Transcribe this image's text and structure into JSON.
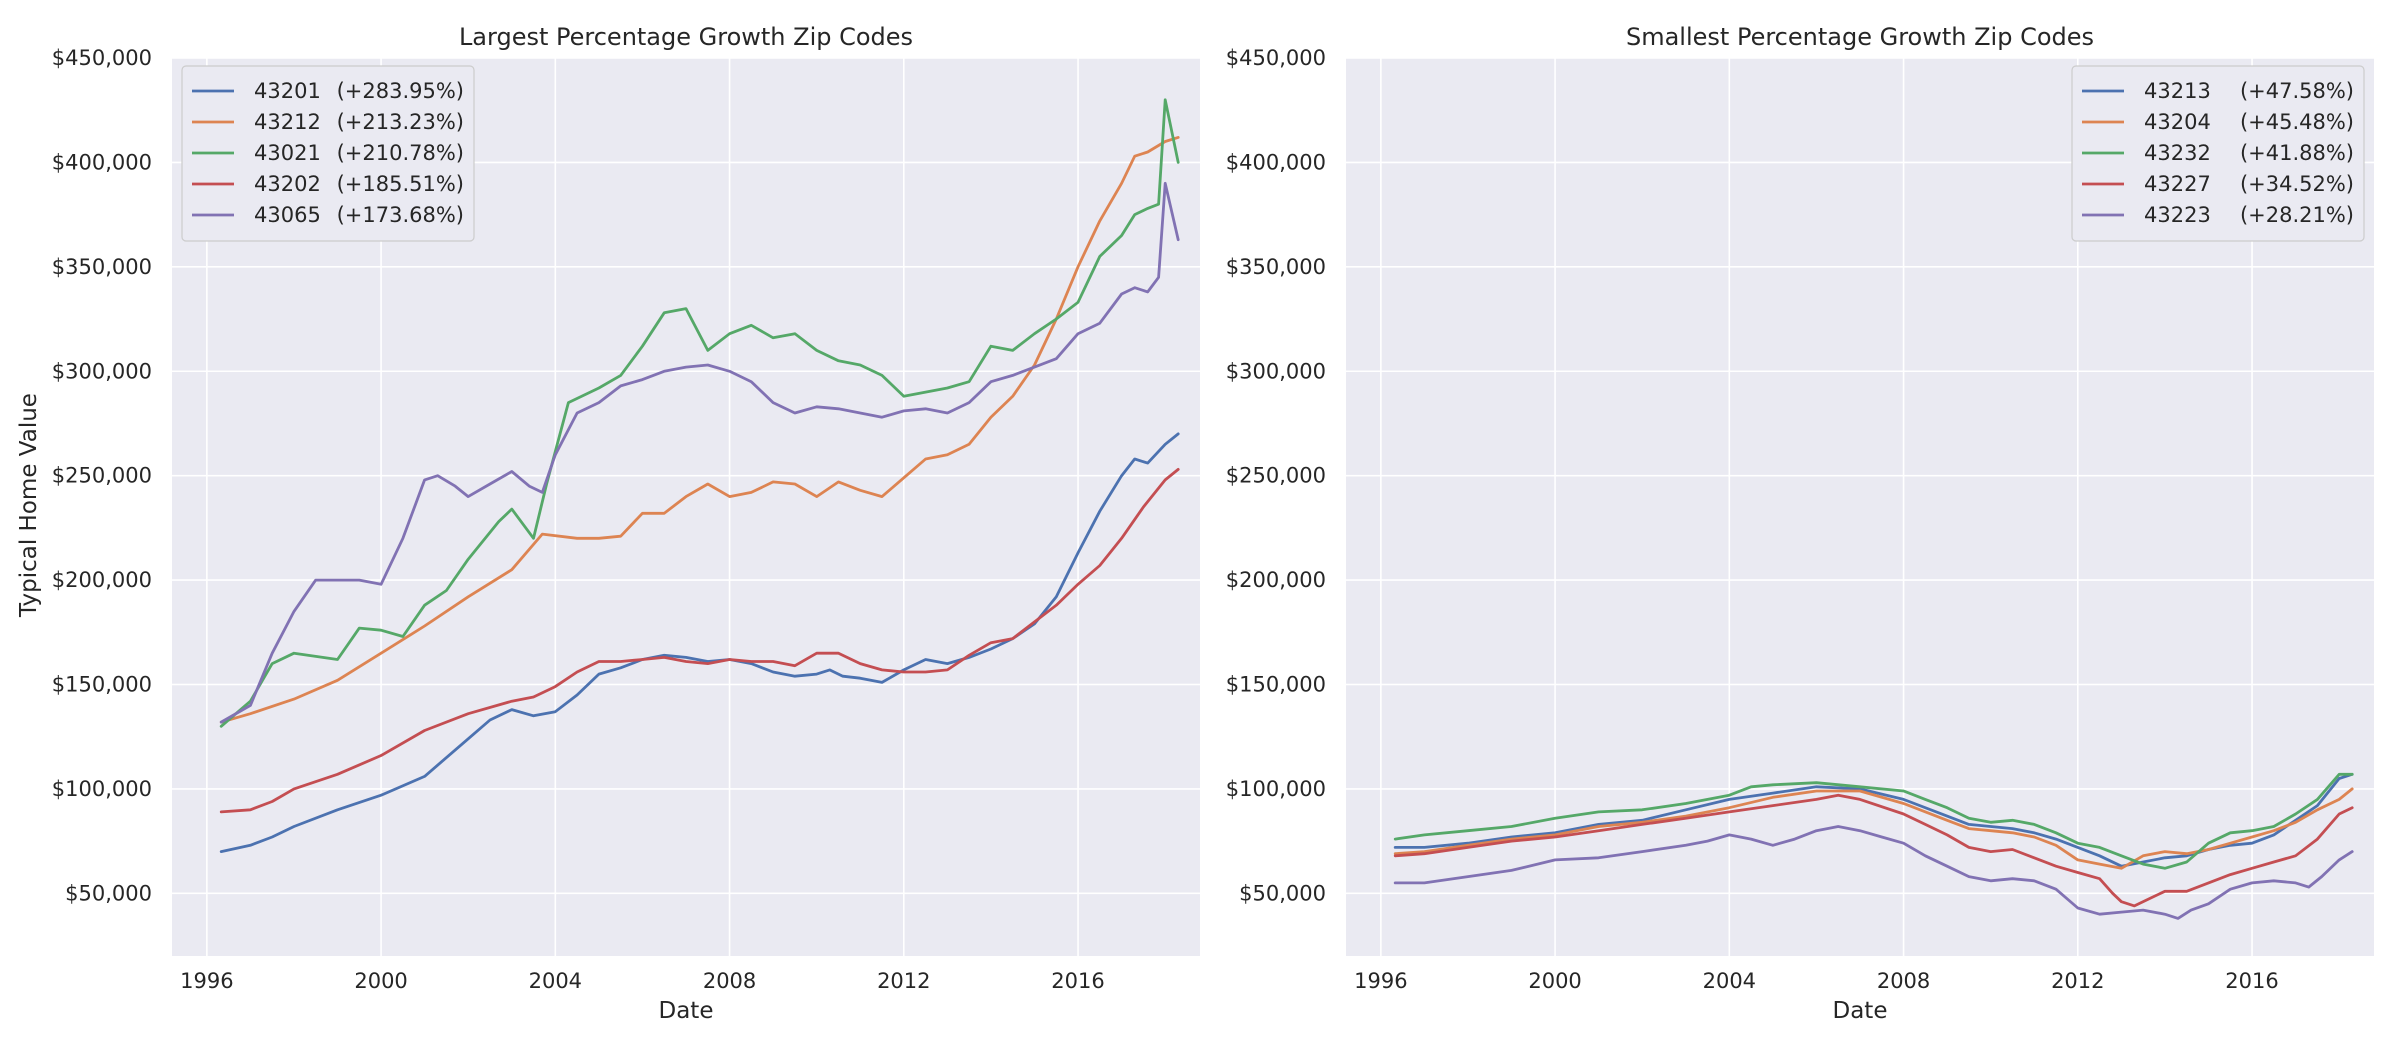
{
  "figure": {
    "ylabel": "Typical Home Value"
  },
  "colors": {
    "background": "#eaeaf2",
    "grid": "#ffffff",
    "series": [
      "#4c72b0",
      "#dd8452",
      "#55a868",
      "#c44e52",
      "#8172b3"
    ]
  },
  "chart_data": [
    {
      "type": "line",
      "title": "Largest Percentage Growth Zip Codes",
      "xlabel": "Date",
      "ylabel": "Typical Home Value",
      "x_ticks": [
        1996,
        2000,
        2004,
        2008,
        2012,
        2016
      ],
      "y_ticks": [
        "$50,000",
        "$100,000",
        "$150,000",
        "$200,000",
        "$250,000",
        "$300,000",
        "$350,000",
        "$400,000",
        "$450,000"
      ],
      "y_tick_values": [
        50000,
        100000,
        150000,
        200000,
        250000,
        300000,
        350000,
        400000,
        450000
      ],
      "xlim": [
        1995.2,
        2018.8
      ],
      "ylim": [
        20000,
        450000
      ],
      "grid": true,
      "legend_position": "upper-left",
      "series": [
        {
          "name": "43201",
          "growth": "(+283.95%)",
          "x": [
            1996.33,
            1997,
            1997.5,
            1998,
            1999,
            2000,
            2001,
            2002,
            2002.5,
            2003,
            2003.5,
            2004,
            2004.5,
            2005,
            2005.5,
            2006,
            2006.5,
            2007,
            2007.5,
            2008,
            2008.5,
            2009,
            2009.5,
            2010,
            2010.3,
            2010.6,
            2011,
            2011.5,
            2012,
            2012.5,
            2013,
            2013.5,
            2014,
            2014.5,
            2015,
            2015.5,
            2016,
            2016.5,
            2017,
            2017.3,
            2017.6,
            2018,
            2018.3
          ],
          "y": [
            70000,
            73000,
            77000,
            82000,
            90000,
            97000,
            106000,
            124000,
            133000,
            138000,
            135000,
            137000,
            145000,
            155000,
            158000,
            162000,
            164000,
            163000,
            161000,
            162000,
            160000,
            156000,
            154000,
            155000,
            157000,
            154000,
            153000,
            151000,
            157000,
            162000,
            160000,
            163000,
            167000,
            172000,
            179000,
            192000,
            213000,
            233000,
            250000,
            258000,
            256000,
            265000,
            270000
          ]
        },
        {
          "name": "43212",
          "growth": "(+213.23%)",
          "x": [
            1996.33,
            1997,
            1998,
            1999,
            2000,
            2001,
            2002,
            2003,
            2003.7,
            2004.5,
            2005,
            2005.5,
            2006,
            2006.5,
            2007,
            2007.5,
            2008,
            2008.5,
            2009,
            2009.5,
            2010,
            2010.5,
            2011,
            2011.5,
            2012,
            2012.5,
            2013,
            2013.5,
            2014,
            2014.5,
            2015,
            2015.5,
            2016,
            2016.5,
            2017,
            2017.3,
            2017.6,
            2018,
            2018.3
          ],
          "y": [
            132000,
            136000,
            143000,
            152000,
            165000,
            178000,
            192000,
            205000,
            222000,
            220000,
            220000,
            221000,
            232000,
            232000,
            240000,
            246000,
            240000,
            242000,
            247000,
            246000,
            240000,
            247000,
            243000,
            240000,
            249000,
            258000,
            260000,
            265000,
            278000,
            288000,
            303000,
            325000,
            350000,
            372000,
            390000,
            403000,
            405000,
            410000,
            412000
          ]
        },
        {
          "name": "43021",
          "growth": "(+210.78%)",
          "x": [
            1996.33,
            1997,
            1997.5,
            1998,
            1999,
            1999.5,
            2000,
            2000.5,
            2001,
            2001.5,
            2002,
            2002.7,
            2003,
            2003.5,
            2003.8,
            2004.3,
            2005,
            2005.5,
            2006,
            2006.5,
            2007,
            2007.5,
            2008,
            2008.5,
            2009,
            2009.5,
            2010,
            2010.5,
            2011,
            2011.5,
            2012,
            2012.5,
            2013,
            2013.5,
            2014,
            2014.5,
            2015,
            2015.5,
            2016,
            2016.5,
            2017,
            2017.3,
            2017.6,
            2017.85,
            2018,
            2018.3
          ],
          "y": [
            130000,
            142000,
            160000,
            165000,
            162000,
            177000,
            176000,
            173000,
            188000,
            195000,
            210000,
            228000,
            234000,
            220000,
            246000,
            285000,
            292000,
            298000,
            312000,
            328000,
            330000,
            310000,
            318000,
            322000,
            316000,
            318000,
            310000,
            305000,
            303000,
            298000,
            288000,
            290000,
            292000,
            295000,
            312000,
            310000,
            318000,
            325000,
            333000,
            355000,
            365000,
            375000,
            378000,
            380000,
            430000,
            400000
          ]
        },
        {
          "name": "43202",
          "growth": "(+185.51%)",
          "x": [
            1996.33,
            1997,
            1997.5,
            1998,
            1999,
            2000,
            2001,
            2002,
            2003,
            2003.5,
            2004,
            2004.5,
            2005,
            2005.5,
            2006,
            2006.5,
            2007,
            2007.5,
            2008,
            2008.5,
            2009,
            2009.5,
            2010,
            2010.5,
            2011,
            2011.5,
            2012,
            2012.5,
            2013,
            2013.5,
            2014,
            2014.5,
            2015,
            2015.5,
            2016,
            2016.5,
            2017,
            2017.5,
            2018,
            2018.3
          ],
          "y": [
            89000,
            90000,
            94000,
            100000,
            107000,
            116000,
            128000,
            136000,
            142000,
            144000,
            149000,
            156000,
            161000,
            161000,
            162000,
            163000,
            161000,
            160000,
            162000,
            161000,
            161000,
            159000,
            165000,
            165000,
            160000,
            157000,
            156000,
            156000,
            157000,
            164000,
            170000,
            172000,
            180000,
            188000,
            198000,
            207000,
            220000,
            235000,
            248000,
            253000
          ]
        },
        {
          "name": "43065",
          "growth": "(+173.68%)",
          "x": [
            1996.33,
            1997,
            1997.5,
            1998,
            1998.5,
            1999,
            1999.5,
            2000,
            2000.5,
            2001,
            2001.3,
            2001.7,
            2002,
            2002.5,
            2003,
            2003.4,
            2003.7,
            2004,
            2004.5,
            2005,
            2005.5,
            2006,
            2006.5,
            2007,
            2007.5,
            2008,
            2008.5,
            2009,
            2009.5,
            2010,
            2010.5,
            2011,
            2011.5,
            2012,
            2012.5,
            2013,
            2013.5,
            2014,
            2014.5,
            2015,
            2015.5,
            2016,
            2016.5,
            2017,
            2017.3,
            2017.6,
            2017.85,
            2018,
            2018.3
          ],
          "y": [
            132000,
            140000,
            165000,
            185000,
            200000,
            200000,
            200000,
            198000,
            220000,
            248000,
            250000,
            245000,
            240000,
            246000,
            252000,
            245000,
            242000,
            260000,
            280000,
            285000,
            293000,
            296000,
            300000,
            302000,
            303000,
            300000,
            295000,
            285000,
            280000,
            283000,
            282000,
            280000,
            278000,
            281000,
            282000,
            280000,
            285000,
            295000,
            298000,
            302000,
            306000,
            318000,
            323000,
            337000,
            340000,
            338000,
            345000,
            390000,
            363000
          ]
        }
      ]
    },
    {
      "type": "line",
      "title": "Smallest Percentage Growth Zip Codes",
      "xlabel": "Date",
      "ylabel": "",
      "x_ticks": [
        1996,
        2000,
        2004,
        2008,
        2012,
        2016
      ],
      "y_ticks": [
        "$50,000",
        "$100,000",
        "$150,000",
        "$200,000",
        "$250,000",
        "$300,000",
        "$350,000",
        "$400,000",
        "$450,000"
      ],
      "y_tick_values": [
        50000,
        100000,
        150000,
        200000,
        250000,
        300000,
        350000,
        400000,
        450000
      ],
      "xlim": [
        1995.2,
        2018.8
      ],
      "ylim": [
        20000,
        450000
      ],
      "grid": true,
      "legend_position": "upper-right",
      "series": [
        {
          "name": "43213",
          "growth": "(+47.58%)",
          "x": [
            1996.33,
            1997,
            1998,
            1999,
            2000,
            2001,
            2002,
            2003,
            2004,
            2005,
            2006,
            2007,
            2008,
            2009,
            2009.5,
            2010,
            2010.5,
            2011,
            2011.5,
            2012,
            2012.5,
            2013,
            2013.5,
            2014,
            2014.5,
            2015,
            2015.5,
            2016,
            2016.5,
            2017,
            2017.5,
            2018,
            2018.3
          ],
          "y": [
            72000,
            72000,
            74000,
            77000,
            79000,
            83000,
            85000,
            90000,
            95000,
            98000,
            101000,
            100000,
            95000,
            87000,
            83000,
            82000,
            81000,
            79000,
            76000,
            72000,
            68000,
            63000,
            65000,
            67000,
            68000,
            71000,
            73000,
            74000,
            78000,
            85000,
            92000,
            105000,
            107000
          ]
        },
        {
          "name": "43204",
          "growth": "(+45.48%)",
          "x": [
            1996.33,
            1997,
            1998,
            1999,
            2000,
            2001,
            2002,
            2003,
            2004,
            2005,
            2006,
            2007,
            2008,
            2009,
            2009.5,
            2010,
            2010.5,
            2011,
            2011.5,
            2012,
            2012.5,
            2013,
            2013.5,
            2014,
            2014.5,
            2015,
            2015.5,
            2016,
            2016.5,
            2017,
            2017.5,
            2018,
            2018.3
          ],
          "y": [
            69000,
            70000,
            73000,
            76000,
            78000,
            82000,
            84000,
            87000,
            91000,
            96000,
            99000,
            99000,
            93000,
            85000,
            81000,
            80000,
            79000,
            77000,
            73000,
            66000,
            64000,
            62000,
            68000,
            70000,
            69000,
            71000,
            74000,
            77000,
            80000,
            84000,
            90000,
            95000,
            100000
          ]
        },
        {
          "name": "43232",
          "growth": "(+41.88%)",
          "x": [
            1996.33,
            1997,
            1998,
            1999,
            2000,
            2001,
            2002,
            2003,
            2004,
            2004.5,
            2005,
            2006,
            2007,
            2008,
            2008.5,
            2009,
            2009.5,
            2010,
            2010.5,
            2011,
            2011.5,
            2012,
            2012.5,
            2013,
            2013.5,
            2014,
            2014.5,
            2015,
            2015.5,
            2016,
            2016.5,
            2017,
            2017.5,
            2018,
            2018.3
          ],
          "y": [
            76000,
            78000,
            80000,
            82000,
            86000,
            89000,
            90000,
            93000,
            97000,
            101000,
            102000,
            103000,
            101000,
            99000,
            95000,
            91000,
            86000,
            84000,
            85000,
            83000,
            79000,
            74000,
            72000,
            68000,
            64000,
            62000,
            65000,
            74000,
            79000,
            80000,
            82000,
            88000,
            95000,
            107000,
            107000
          ]
        },
        {
          "name": "43227",
          "growth": "(+34.52%)",
          "x": [
            1996.33,
            1997,
            1998,
            1999,
            2000,
            2001,
            2002,
            2003,
            2004,
            2005,
            2006,
            2006.5,
            2007,
            2008,
            2008.5,
            2009,
            2009.5,
            2010,
            2010.5,
            2011,
            2011.5,
            2012,
            2012.5,
            2012.8,
            2013,
            2013.3,
            2013.7,
            2014,
            2014.5,
            2015,
            2015.5,
            2016,
            2016.5,
            2017,
            2017.5,
            2018,
            2018.3
          ],
          "y": [
            68000,
            69000,
            72000,
            75000,
            77000,
            80000,
            83000,
            86000,
            89000,
            92000,
            95000,
            97000,
            95000,
            88000,
            83000,
            78000,
            72000,
            70000,
            71000,
            67000,
            63000,
            60000,
            57000,
            50000,
            46000,
            44000,
            48000,
            51000,
            51000,
            55000,
            59000,
            62000,
            65000,
            68000,
            76000,
            88000,
            91000
          ]
        },
        {
          "name": "43223",
          "growth": "(+28.21%)",
          "x": [
            1996.33,
            1997,
            1998,
            1999,
            2000,
            2001,
            2002,
            2003,
            2003.5,
            2004,
            2004.5,
            2005,
            2005.5,
            2006,
            2006.5,
            2007,
            2007.5,
            2008,
            2008.5,
            2009,
            2009.5,
            2010,
            2010.5,
            2011,
            2011.5,
            2012,
            2012.5,
            2013,
            2013.5,
            2014,
            2014.3,
            2014.6,
            2015,
            2015.5,
            2016,
            2016.5,
            2017,
            2017.3,
            2017.6,
            2018,
            2018.3
          ],
          "y": [
            55000,
            55000,
            58000,
            61000,
            66000,
            67000,
            70000,
            73000,
            75000,
            78000,
            76000,
            73000,
            76000,
            80000,
            82000,
            80000,
            77000,
            74000,
            68000,
            63000,
            58000,
            56000,
            57000,
            56000,
            52000,
            43000,
            40000,
            41000,
            42000,
            40000,
            38000,
            42000,
            45000,
            52000,
            55000,
            56000,
            55000,
            53000,
            58000,
            66000,
            70000
          ]
        }
      ]
    }
  ]
}
